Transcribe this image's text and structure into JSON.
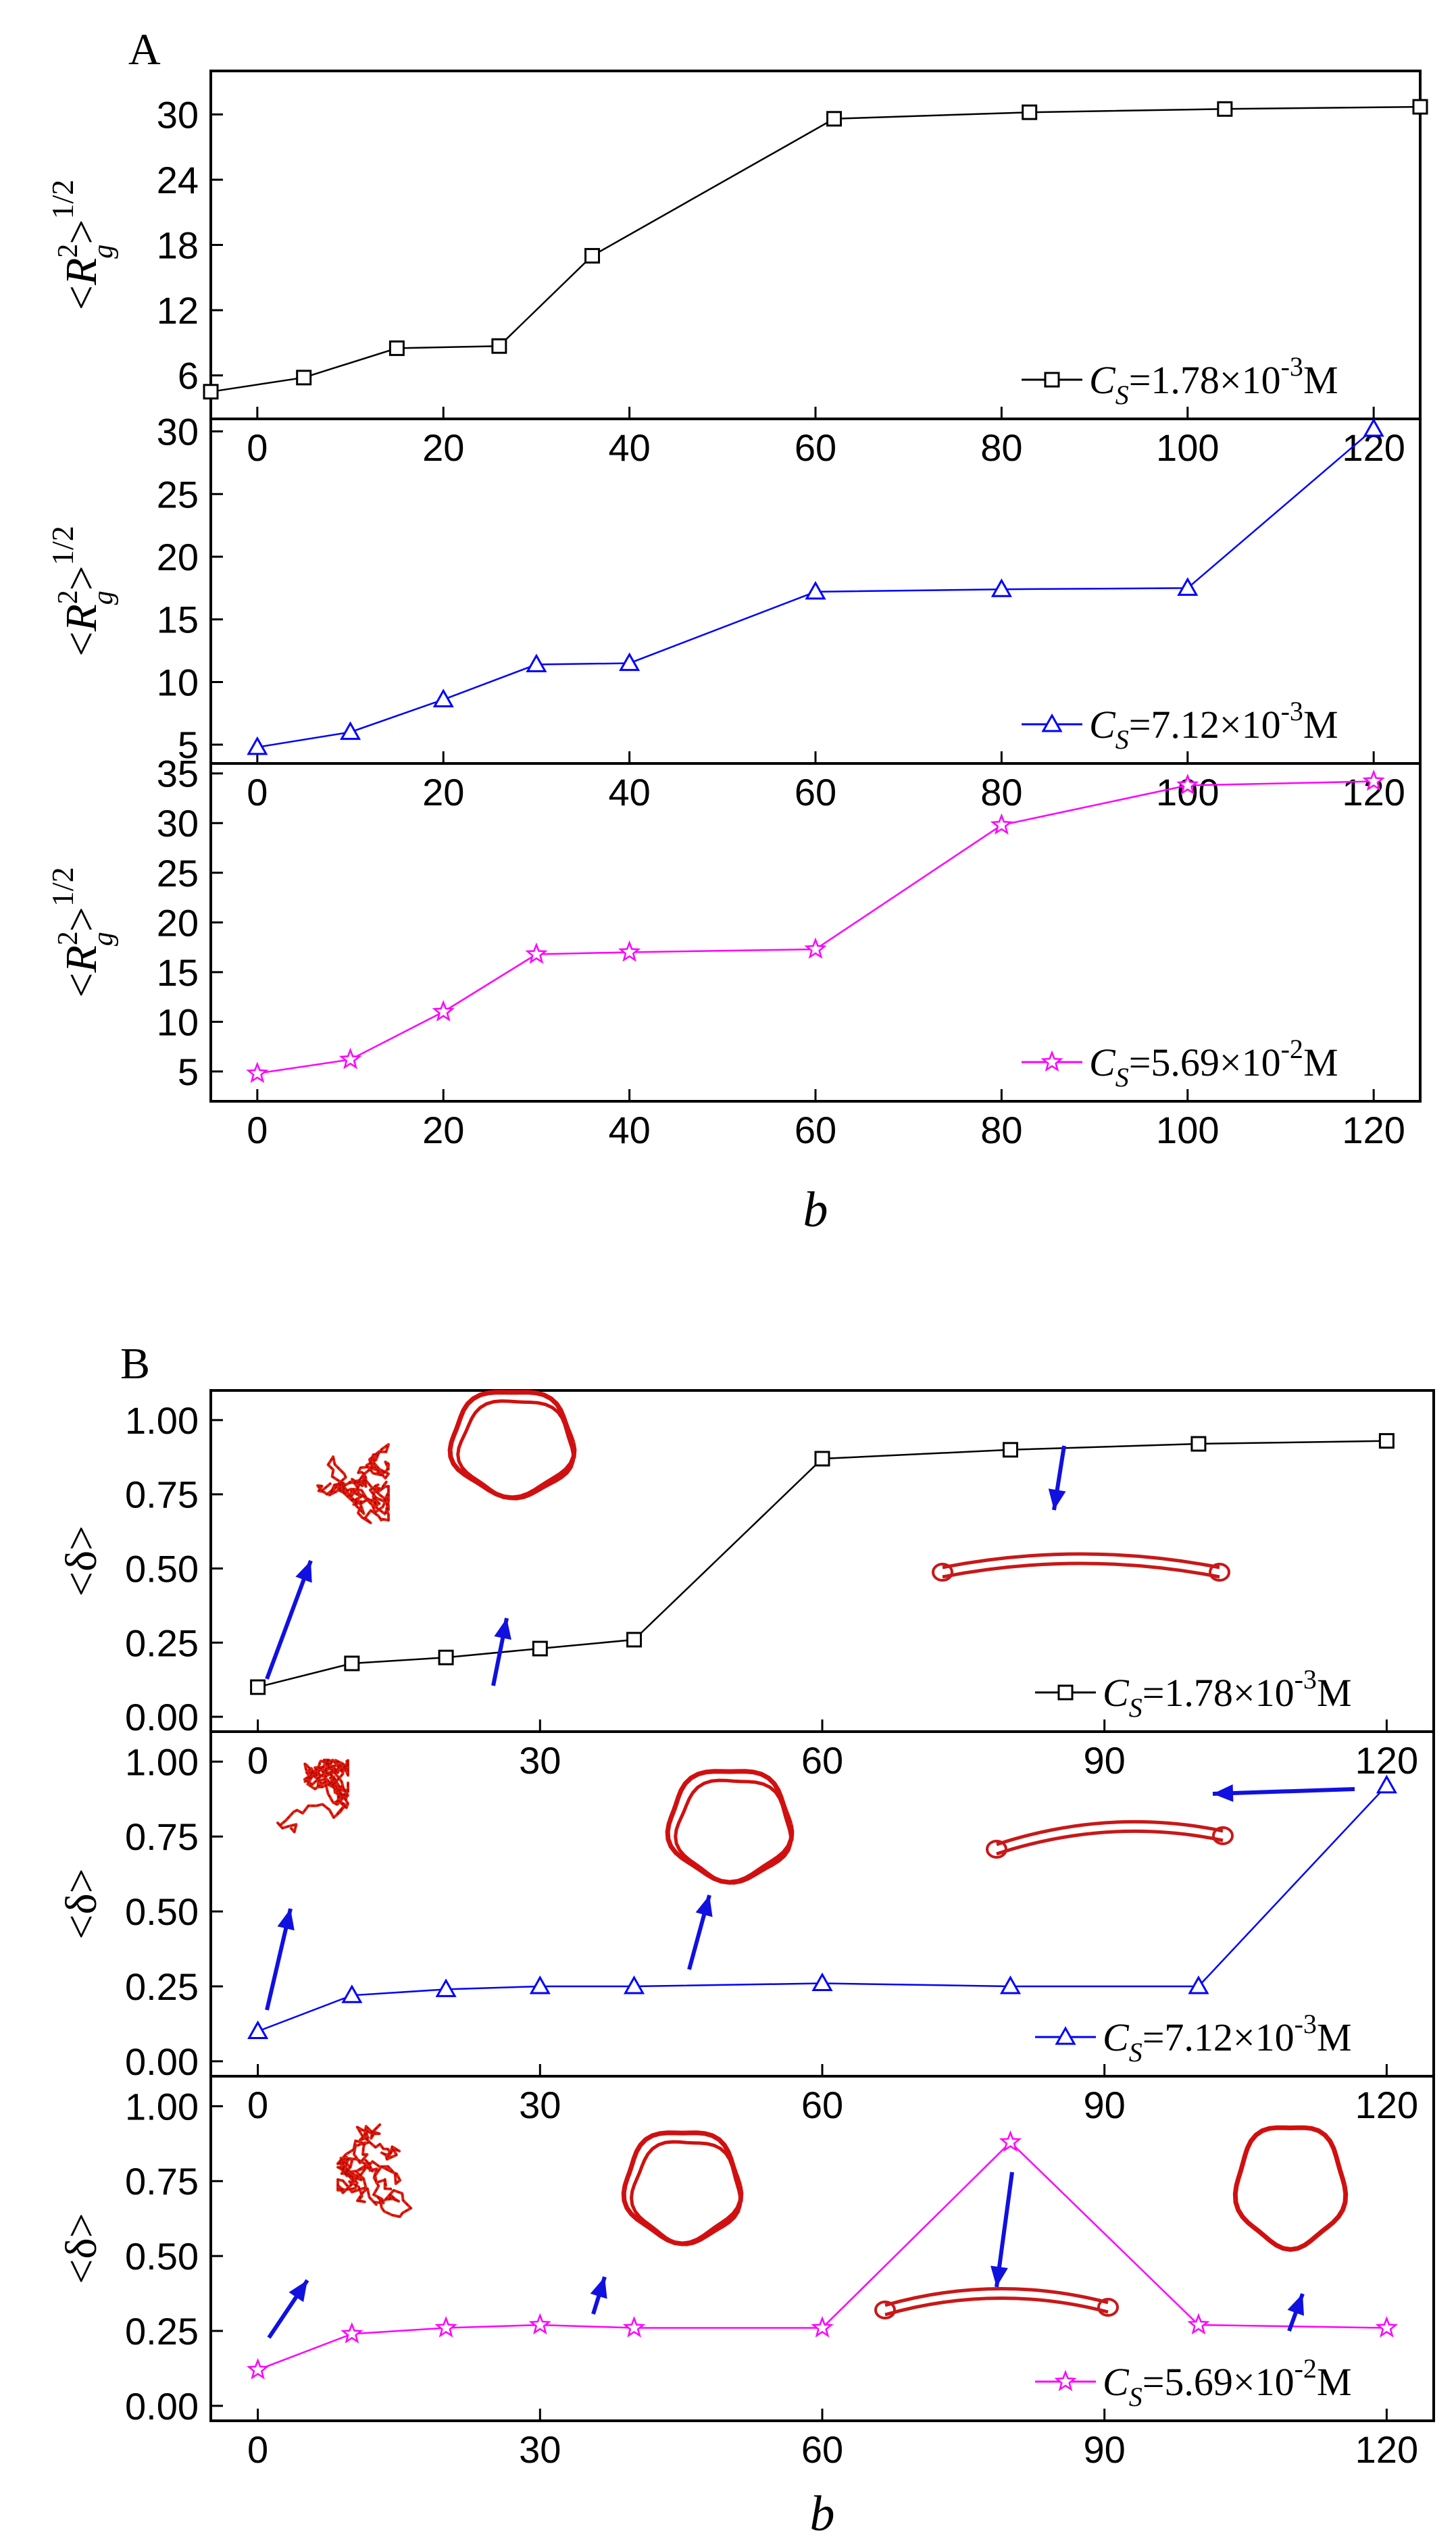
{
  "panels": [
    {
      "letter": "A",
      "xlabel": "b",
      "subplots": [
        {
          "ylabel": "<R²g>1/2",
          "ylabel_parts": [
            "<",
            "R",
            "2",
            "g",
            ">",
            "1/2"
          ],
          "color": "#000000",
          "marker": "square",
          "legend": {
            "symbol": "C",
            "sub": "S",
            "value": "=1.78×10",
            "exp": "-3",
            "unit": "M"
          },
          "xlim": [
            -5,
            125
          ],
          "ylim": [
            2,
            34
          ],
          "xticks": [
            "0",
            "20",
            "40",
            "60",
            "80",
            "100",
            "120"
          ],
          "xtick_values": [
            0,
            20,
            40,
            60,
            80,
            100,
            120
          ],
          "yticks": [
            "6",
            "12",
            "18",
            "24",
            "30"
          ],
          "ytick_values": [
            6,
            12,
            18,
            24,
            30
          ],
          "points": [
            [
              -5,
              4.5
            ],
            [
              5,
              5.8
            ],
            [
              15,
              8.5
            ],
            [
              26,
              8.7
            ],
            [
              36,
              17
            ],
            [
              62,
              29.6
            ],
            [
              83,
              30.2
            ],
            [
              104,
              30.5
            ],
            [
              125,
              30.7
            ]
          ]
        },
        {
          "ylabel": "<R²g>1/2",
          "ylabel_parts": [
            "<",
            "R",
            "2",
            "g",
            ">",
            "1/2"
          ],
          "color": "#0000ff",
          "marker": "triangle",
          "legend": {
            "symbol": "C",
            "sub": "S",
            "value": "=7.12×10",
            "exp": "-3",
            "unit": "M"
          },
          "xlim": [
            -5,
            125
          ],
          "ylim": [
            3.5,
            31
          ],
          "xticks": [
            "0",
            "20",
            "40",
            "60",
            "80",
            "100",
            "120"
          ],
          "xtick_values": [
            0,
            20,
            40,
            60,
            80,
            100,
            120
          ],
          "yticks": [
            "5",
            "10",
            "15",
            "20",
            "25",
            "30"
          ],
          "ytick_values": [
            5,
            10,
            15,
            20,
            25,
            30
          ],
          "points": [
            [
              0,
              4.8
            ],
            [
              10,
              6
            ],
            [
              20,
              8.6
            ],
            [
              30,
              11.4
            ],
            [
              40,
              11.5
            ],
            [
              60,
              17.2
            ],
            [
              80,
              17.4
            ],
            [
              100,
              17.5
            ],
            [
              120,
              30.2
            ]
          ]
        },
        {
          "ylabel": "<R²g>1/2",
          "ylabel_parts": [
            "<",
            "R",
            "2",
            "g",
            ">",
            "1/2"
          ],
          "color": "#ff00ff",
          "marker": "star",
          "legend": {
            "symbol": "C",
            "sub": "S",
            "value": "=5.69×10",
            "exp": "-2",
            "unit": "M"
          },
          "xlim": [
            -5,
            125
          ],
          "ylim": [
            2,
            36
          ],
          "xticks": [
            "0",
            "20",
            "40",
            "60",
            "80",
            "100",
            "120"
          ],
          "xtick_values": [
            0,
            20,
            40,
            60,
            80,
            100,
            120
          ],
          "yticks": [
            "5",
            "10",
            "15",
            "20",
            "25",
            "30",
            "35"
          ],
          "ytick_values": [
            5,
            10,
            15,
            20,
            25,
            30,
            35
          ],
          "points": [
            [
              0,
              4.8
            ],
            [
              10,
              6.2
            ],
            [
              20,
              11
            ],
            [
              30,
              16.8
            ],
            [
              40,
              17
            ],
            [
              60,
              17.3
            ],
            [
              80,
              29.8
            ],
            [
              100,
              33.8
            ],
            [
              120,
              34.2
            ]
          ]
        }
      ]
    },
    {
      "letter": "B",
      "xlabel": "b",
      "subplots": [
        {
          "ylabel": "<δ>",
          "color": "#000000",
          "marker": "square",
          "legend": {
            "symbol": "C",
            "sub": "S",
            "value": "=1.78×10",
            "exp": "-3",
            "unit": "M"
          },
          "xlim": [
            -5,
            125
          ],
          "ylim": [
            -0.05,
            1.1
          ],
          "xticks": [
            "0",
            "30",
            "60",
            "90",
            "120"
          ],
          "xtick_values": [
            0,
            30,
            60,
            90,
            120
          ],
          "yticks": [
            "0.00",
            "0.25",
            "0.50",
            "0.75",
            "1.00"
          ],
          "ytick_values": [
            0,
            0.25,
            0.5,
            0.75,
            1.0
          ],
          "points": [
            [
              0,
              0.1
            ],
            [
              10,
              0.18
            ],
            [
              20,
              0.2
            ],
            [
              30,
              0.23
            ],
            [
              40,
              0.26
            ],
            [
              60,
              0.87
            ],
            [
              80,
              0.9
            ],
            [
              100,
              0.92
            ],
            [
              120,
              0.93
            ]
          ]
        },
        {
          "ylabel": "<δ>",
          "color": "#0000ff",
          "marker": "triangle",
          "legend": {
            "symbol": "C",
            "sub": "S",
            "value": "=7.12×10",
            "exp": "-3",
            "unit": "M"
          },
          "xlim": [
            -5,
            125
          ],
          "ylim": [
            -0.05,
            1.1
          ],
          "xticks": [
            "0",
            "30",
            "60",
            "90",
            "120"
          ],
          "xtick_values": [
            0,
            30,
            60,
            90,
            120
          ],
          "yticks": [
            "0.00",
            "0.25",
            "0.50",
            "0.75",
            "1.00"
          ],
          "ytick_values": [
            0,
            0.25,
            0.5,
            0.75,
            1.0
          ],
          "points": [
            [
              0,
              0.1
            ],
            [
              10,
              0.22
            ],
            [
              20,
              0.24
            ],
            [
              30,
              0.25
            ],
            [
              40,
              0.25
            ],
            [
              60,
              0.26
            ],
            [
              80,
              0.25
            ],
            [
              100,
              0.25
            ],
            [
              120,
              0.92
            ]
          ]
        },
        {
          "ylabel": "<δ>",
          "color": "#ff00ff",
          "marker": "star",
          "legend": {
            "symbol": "C",
            "sub": "S",
            "value": "=5.69×10",
            "exp": "-2",
            "unit": "M"
          },
          "xlim": [
            -5,
            125
          ],
          "ylim": [
            -0.05,
            1.1
          ],
          "xticks": [
            "0",
            "30",
            "60",
            "90",
            "120"
          ],
          "xtick_values": [
            0,
            30,
            60,
            90,
            120
          ],
          "yticks": [
            "0.00",
            "0.25",
            "0.50",
            "0.75",
            "1.00"
          ],
          "ytick_values": [
            0,
            0.25,
            0.5,
            0.75,
            1.0
          ],
          "points": [
            [
              0,
              0.12
            ],
            [
              10,
              0.24
            ],
            [
              20,
              0.26
            ],
            [
              30,
              0.27
            ],
            [
              40,
              0.26
            ],
            [
              60,
              0.26
            ],
            [
              80,
              0.88
            ],
            [
              100,
              0.27
            ],
            [
              120,
              0.26
            ]
          ]
        }
      ]
    }
  ],
  "chart_data": [
    {
      "type": "line",
      "title": "",
      "xlabel": "b",
      "ylabel": "<R²g>1/2",
      "xlim": [
        -5,
        125
      ],
      "ylim": [
        2,
        34
      ],
      "series": [
        {
          "name": "CS=1.78×10-3M",
          "x": [
            -5,
            5,
            15,
            26,
            36,
            62,
            83,
            104,
            125
          ],
          "values": [
            4.5,
            5.8,
            8.5,
            8.7,
            17,
            29.6,
            30.2,
            30.5,
            30.7
          ]
        }
      ]
    },
    {
      "type": "line",
      "title": "",
      "xlabel": "b",
      "ylabel": "<R²g>1/2",
      "xlim": [
        -5,
        125
      ],
      "ylim": [
        3.5,
        31
      ],
      "series": [
        {
          "name": "CS=7.12×10-3M",
          "x": [
            0,
            10,
            20,
            30,
            40,
            60,
            80,
            100,
            120
          ],
          "values": [
            4.8,
            6,
            8.6,
            11.4,
            11.5,
            17.2,
            17.4,
            17.5,
            30.2
          ]
        }
      ]
    },
    {
      "type": "line",
      "title": "",
      "xlabel": "b",
      "ylabel": "<R²g>1/2",
      "xlim": [
        -5,
        125
      ],
      "ylim": [
        2,
        36
      ],
      "series": [
        {
          "name": "CS=5.69×10-2M",
          "x": [
            0,
            10,
            20,
            30,
            40,
            60,
            80,
            100,
            120
          ],
          "values": [
            4.8,
            6.2,
            11,
            16.8,
            17,
            17.3,
            29.8,
            33.8,
            34.2
          ]
        }
      ]
    },
    {
      "type": "line",
      "title": "",
      "xlabel": "b",
      "ylabel": "<δ>",
      "xlim": [
        -5,
        125
      ],
      "ylim": [
        -0.05,
        1.1
      ],
      "series": [
        {
          "name": "CS=1.78×10-3M",
          "x": [
            0,
            10,
            20,
            30,
            40,
            60,
            80,
            100,
            120
          ],
          "values": [
            0.1,
            0.18,
            0.2,
            0.23,
            0.26,
            0.87,
            0.9,
            0.92,
            0.93
          ]
        }
      ]
    },
    {
      "type": "line",
      "title": "",
      "xlabel": "b",
      "ylabel": "<δ>",
      "xlim": [
        -5,
        125
      ],
      "ylim": [
        -0.05,
        1.1
      ],
      "series": [
        {
          "name": "CS=7.12×10-3M",
          "x": [
            0,
            10,
            20,
            30,
            40,
            60,
            80,
            100,
            120
          ],
          "values": [
            0.1,
            0.22,
            0.24,
            0.25,
            0.25,
            0.26,
            0.25,
            0.25,
            0.92
          ]
        }
      ]
    },
    {
      "type": "line",
      "title": "",
      "xlabel": "b",
      "ylabel": "<δ>",
      "xlim": [
        -5,
        125
      ],
      "ylim": [
        -0.05,
        1.1
      ],
      "series": [
        {
          "name": "CS=5.69×10-2M",
          "x": [
            0,
            10,
            20,
            30,
            40,
            60,
            80,
            100,
            120
          ],
          "values": [
            0.12,
            0.24,
            0.26,
            0.27,
            0.26,
            0.26,
            0.88,
            0.27,
            0.26
          ]
        }
      ]
    }
  ]
}
